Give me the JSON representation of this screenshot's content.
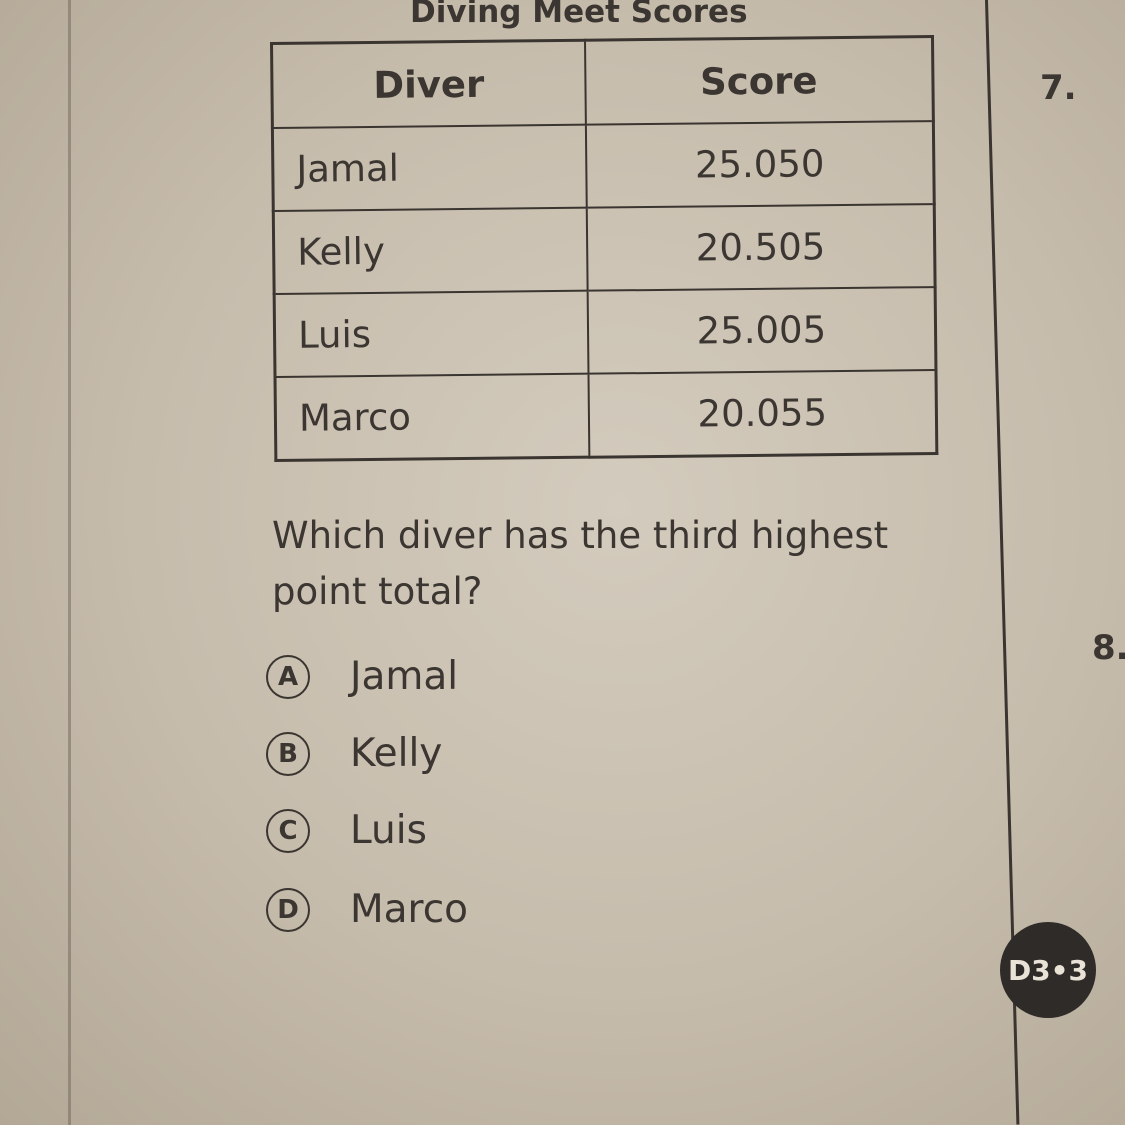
{
  "title": "Diving Meet Scores",
  "table": {
    "headers": [
      "Diver",
      "Score"
    ],
    "rows": [
      {
        "diver": "Jamal",
        "score": "25.050"
      },
      {
        "diver": "Kelly",
        "score": "20.505"
      },
      {
        "diver": "Luis",
        "score": "25.005"
      },
      {
        "diver": "Marco",
        "score": "20.055"
      }
    ]
  },
  "question_number": "7.",
  "next_question_number": "8.",
  "question": "Which diver has the third highest point total?",
  "options": [
    {
      "letter": "A",
      "text": "Jamal"
    },
    {
      "letter": "B",
      "text": "Kelly"
    },
    {
      "letter": "C",
      "text": "Luis"
    },
    {
      "letter": "D",
      "text": "Marco"
    }
  ],
  "badge": "D3•3"
}
